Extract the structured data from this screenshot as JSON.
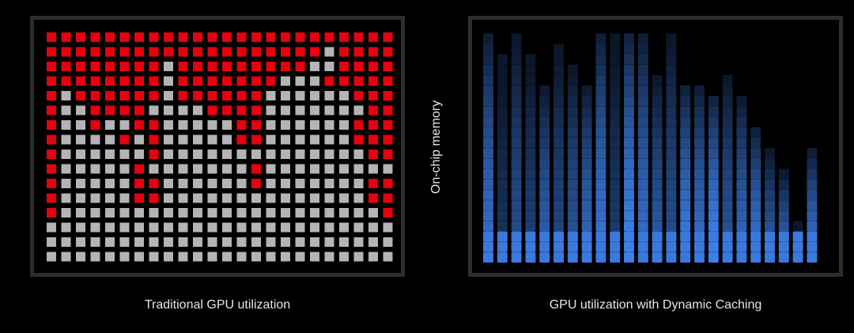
{
  "left_panel": {
    "caption": "Traditional GPU utilization",
    "columns": 24,
    "rows": 16,
    "colors": {
      "allocated": "#e8000f",
      "unused": "#b4b4b4"
    },
    "grid": [
      "RRRRRRRRRRRRRRRRRRRRRRRR",
      "RRRRRRRRRRRRRRRRRRRGRRRR",
      "RRRRRRRRGRRRRRRRRRGGRRRR",
      "RRRRRRRRGRRRRRRRGGGRRRRR",
      "RGRRRRRRGRRRRRRGGGGGGRRR",
      "RGGRRRRGGGGRRRRGGGGGGGRR",
      "RGGRGGRRGGGGGRRGGGGGGRRR",
      "RGGGGRGRGGGGGRRGGGGGGRRR",
      "RGGGGGGRGGGGGGGGGGGGGGRR",
      "RGGGGGRGGGGGGGRGGGGGGGGG",
      "RGGGGGRRGGGGGGRGGGGGGGRR",
      "RGGGGGRRGGGGGGGGGGGGGGRR",
      "RGGGGGGGGGGGGGGGGGGGGGGR",
      "GGGGGGGGGGGGGGGGGGGGGGGG",
      "GGGGGGGGGGGGGGGGGGGGGGGG",
      "GGGGGGGGGGGGGGGGGGGGGGGG"
    ]
  },
  "right_panel": {
    "caption": "GPU utilization with Dynamic Caching",
    "columns": 24,
    "rows": 22,
    "colors": {
      "cell": "#3d7fe8"
    },
    "column_fill_heights": [
      22,
      20,
      22,
      20,
      17,
      21,
      19,
      17,
      22,
      22,
      22,
      22,
      18,
      22,
      17,
      17,
      16,
      18,
      16,
      13,
      11,
      9,
      4,
      11
    ],
    "column_brightness": [
      0.85,
      0.4,
      0.6,
      0.5,
      0.75,
      0.55,
      0.65,
      0.8,
      0.9,
      0.45,
      1.0,
      0.85,
      0.7,
      0.6,
      0.95,
      0.85,
      1.0,
      0.65,
      0.8,
      0.9,
      0.7,
      0.75,
      0.4,
      0.85
    ]
  },
  "axis_label": "On-chip memory"
}
